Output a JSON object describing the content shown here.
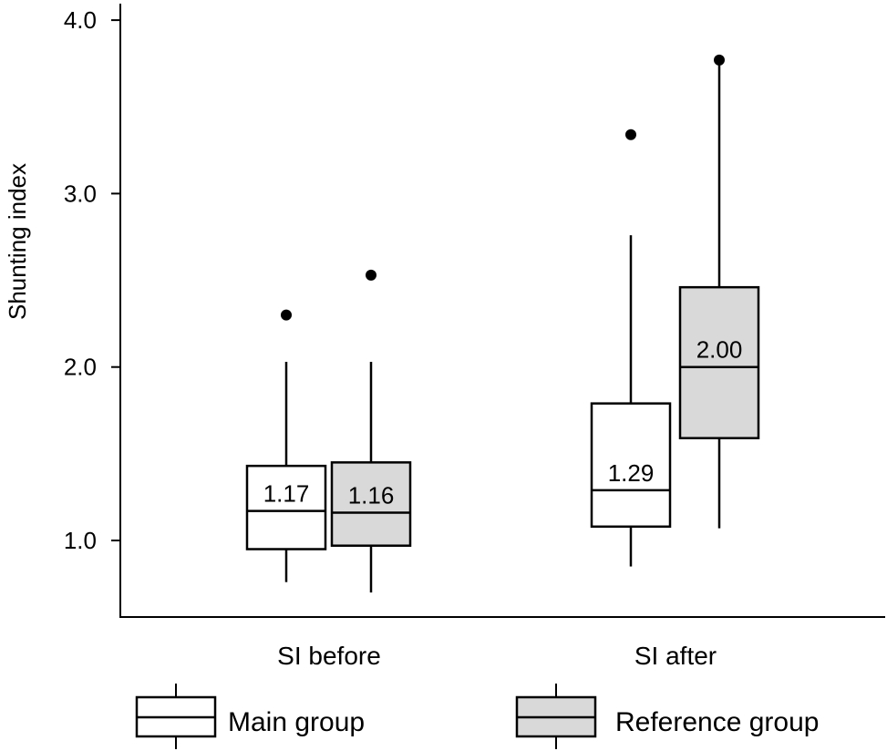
{
  "chart_data": {
    "type": "box",
    "title": "",
    "xlabel": "",
    "ylabel": "Shunting index",
    "ylim": [
      0.55,
      4.1
    ],
    "yticks": [
      {
        "value": 1.0,
        "label": "1.0"
      },
      {
        "value": 2.0,
        "label": "2.0"
      },
      {
        "value": 3.0,
        "label": "3.0"
      },
      {
        "value": 4.0,
        "label": "4.0"
      }
    ],
    "categories": [
      "SI before",
      "SI after"
    ],
    "legend": {
      "placement": "bottom",
      "entries": [
        {
          "name": "Main group",
          "color": "#ffffff"
        },
        {
          "name": "Reference group",
          "color": "#d9d9d9"
        }
      ]
    },
    "series": [
      {
        "name": "Main group",
        "color": "#ffffff",
        "boxes": [
          {
            "category": "SI before",
            "whisker_low": 0.76,
            "q1": 0.95,
            "median": 1.17,
            "q3": 1.43,
            "whisker_high": 2.03,
            "outliers": [
              2.3
            ],
            "median_label": "1.17"
          },
          {
            "category": "SI after",
            "whisker_low": 0.85,
            "q1": 1.08,
            "median": 1.29,
            "q3": 1.79,
            "whisker_high": 2.76,
            "outliers": [
              3.34
            ],
            "median_label": "1.29"
          }
        ]
      },
      {
        "name": "Reference group",
        "color": "#d9d9d9",
        "boxes": [
          {
            "category": "SI before",
            "whisker_low": 0.7,
            "q1": 0.97,
            "median": 1.16,
            "q3": 1.45,
            "whisker_high": 2.03,
            "outliers": [
              2.53
            ],
            "median_label": "1.16"
          },
          {
            "category": "SI after",
            "whisker_low": 1.07,
            "q1": 1.59,
            "median": 2.0,
            "q3": 2.46,
            "whisker_high": 3.77,
            "outliers": [
              3.77
            ],
            "median_label": "2.00"
          }
        ]
      }
    ]
  }
}
